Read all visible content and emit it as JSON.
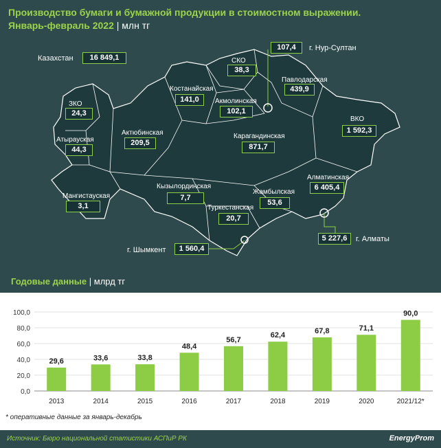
{
  "header": {
    "title_line1": "Производство бумаги и бумажной продукции в стоимостном выражении.",
    "title_line2": "Январь-февраль 2022",
    "unit": "| млн тг"
  },
  "map": {
    "country": {
      "name": "Казахстан",
      "value": "16 849,1"
    },
    "regions": [
      {
        "id": "sko",
        "name": "СКО",
        "value": "38,3"
      },
      {
        "id": "nur-sultan",
        "name": "г. Нур-Султан",
        "value": "107,4"
      },
      {
        "id": "pavlodar",
        "name": "Павлодарская",
        "value": "439,9"
      },
      {
        "id": "kostanay",
        "name": "Костанайская",
        "value": "141,0"
      },
      {
        "id": "akmola",
        "name": "Акмолинская",
        "value": "102,1"
      },
      {
        "id": "zko",
        "name": "ЗКО",
        "value": "24,3"
      },
      {
        "id": "vko",
        "name": "ВКО",
        "value": "1 592,3"
      },
      {
        "id": "atyrau",
        "name": "Атырауская",
        "value": "44,3"
      },
      {
        "id": "aktobe",
        "name": "Актюбинская",
        "value": "209,5"
      },
      {
        "id": "karaganda",
        "name": "Карагандинская",
        "value": "871,7"
      },
      {
        "id": "almaty-obl",
        "name": "Алматинская",
        "value": "6 405,4"
      },
      {
        "id": "mangistau",
        "name": "Мангистауская",
        "value": "3,1"
      },
      {
        "id": "kyzylorda",
        "name": "Кызылординская",
        "value": "7,7"
      },
      {
        "id": "zhambyl",
        "name": "Жамбылская",
        "value": "53,6"
      },
      {
        "id": "turkestan",
        "name": "Туркестанская",
        "value": "20,7"
      },
      {
        "id": "almaty-city",
        "name": "г. Алматы",
        "value": "5 227,6"
      },
      {
        "id": "shymkent",
        "name": "г. Шымкент",
        "value": "1 560,4"
      }
    ]
  },
  "annual": {
    "title": "Годовые данные",
    "unit": "| млрд тг"
  },
  "chart_data": {
    "type": "bar",
    "categories": [
      "2013",
      "2014",
      "2015",
      "2016",
      "2017",
      "2018",
      "2019",
      "2020",
      "2021/12*"
    ],
    "values": [
      29.6,
      33.6,
      33.8,
      48.4,
      56.7,
      62.4,
      67.8,
      71.1,
      90.0
    ],
    "value_labels": [
      "29,6",
      "33,6",
      "33,8",
      "48,4",
      "56,7",
      "62,4",
      "67,8",
      "71,1",
      "90,0"
    ],
    "yticks": [
      0,
      20,
      40,
      60,
      80,
      100
    ],
    "ytick_labels": [
      "0,0",
      "20,0",
      "40,0",
      "60,0",
      "80,0",
      "100,0"
    ],
    "ylim": [
      0,
      100
    ],
    "bar_color": "#8dcc45",
    "grid": true
  },
  "footnote": "* оперативные данные за январь-декабрь",
  "footer": {
    "source": "Источник: Бюро национальной статистики АСПиР РК",
    "brand": "EnergyProm"
  }
}
